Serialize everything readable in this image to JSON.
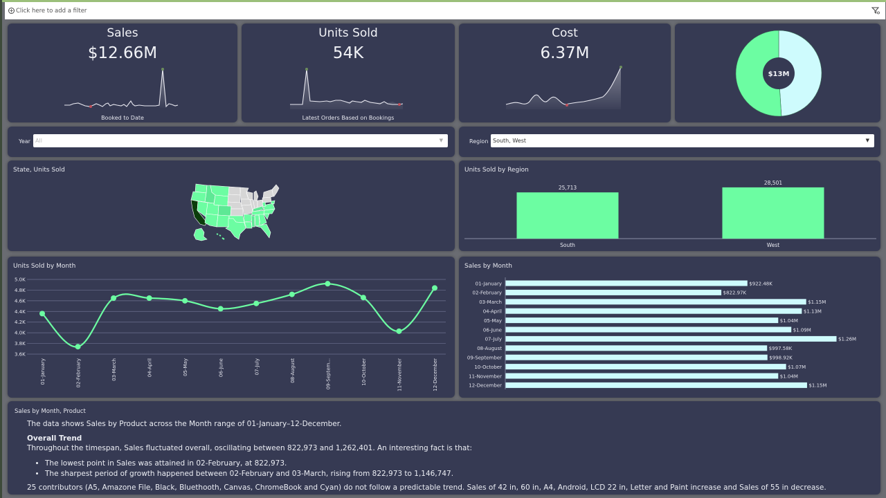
{
  "filter_bar": {
    "placeholder": "Click here to add a filter",
    "add_icon": "plus-circle-icon",
    "funnel_icon": "filter-funnel-icon"
  },
  "kpis": [
    {
      "title": "Sales",
      "value": "$12.66M",
      "subtitle": "Booked to Date"
    },
    {
      "title": "Units Sold",
      "value": "54K",
      "subtitle": "Latest Orders Based on Bookings"
    },
    {
      "title": "Cost",
      "value": "6.37M",
      "subtitle": ""
    }
  ],
  "donut": {
    "center_label": "$13M",
    "slices": [
      {
        "name": "segment-green",
        "share": 0.51,
        "color": "#6cfda2"
      },
      {
        "name": "segment-light",
        "share": 0.49,
        "color": "#cefbfd"
      }
    ]
  },
  "filters": {
    "year": {
      "label": "Year",
      "value": "All"
    },
    "region": {
      "label": "Region",
      "value": "South, West"
    }
  },
  "map": {
    "title": "State, Units Sold",
    "highlight_color": "#0b3d0b",
    "fill_color": "#6cfda2",
    "empty_color": "#d6d6d6"
  },
  "colors": {
    "panel_bg": "#363a53",
    "accent_green": "#6cfda2",
    "accent_light": "#cefbfd",
    "spark_max": "#6e8f5e",
    "spark_min": "#c0505a"
  },
  "chart_data": [
    {
      "type": "bar",
      "title": "Units Sold by Region",
      "categories": [
        "South",
        "West"
      ],
      "values": [
        25713,
        28501
      ],
      "data_labels": [
        "25,713",
        "28,501"
      ],
      "ylim": [
        0,
        30000
      ]
    },
    {
      "type": "line",
      "title": "Units Sold by Month",
      "categories": [
        "01-January",
        "02-February",
        "03-March",
        "04-April",
        "05-May",
        "06-June",
        "07-July",
        "08-August",
        "09-Septem...",
        "10-October",
        "11-November",
        "12-December"
      ],
      "values": [
        4360,
        3740,
        4650,
        4650,
        4600,
        4450,
        4550,
        4720,
        4920,
        4660,
        4030,
        4840
      ],
      "yticks": [
        "3.6K",
        "3.8K",
        "4.0K",
        "4.2K",
        "4.4K",
        "4.6K",
        "4.8K",
        "5.0K"
      ],
      "ylim": [
        3600,
        5000
      ],
      "grid": true
    },
    {
      "type": "bar",
      "orientation": "horizontal",
      "title": "Sales by Month",
      "categories": [
        "01-January",
        "02-February",
        "03-March",
        "04-April",
        "05-May",
        "06-June",
        "07-July",
        "08-August",
        "09-September",
        "10-October",
        "11-November",
        "12-December"
      ],
      "values": [
        922480,
        822973,
        1146747,
        1130000,
        1040000,
        1090000,
        1262401,
        997580,
        998920,
        1070000,
        1040000,
        1150000
      ],
      "data_labels": [
        "$922.48K",
        "$822.97K",
        "$1.15M",
        "$1.13M",
        "$1.04M",
        "$1.09M",
        "$1.26M",
        "$997.58K",
        "$998.92K",
        "$1.07M",
        "$1.04M",
        "$1.15M"
      ],
      "xlim": [
        0,
        1400000
      ]
    }
  ],
  "narrative": {
    "title": "Sales by Month, Product",
    "intro": "The data shows Sales by Product across the Month range of 01-January–12-December.",
    "heading": "Overall Trend",
    "trend": "Throughout the timespan, Sales fluctuated overall, oscillating between 822,973 and 1,262,401. An interesting fact is that:",
    "bullets": [
      "The lowest point in Sales was attained in 02-February, at 822,973.",
      "The sharpest period of growth happened between 02-February and 03-March, rising from 822,973 to 1,146,747."
    ],
    "contributors": "25 contributors (A5, Amazone File, Black, Bluethooth, Canvas, ChromeBook and Cyan) do not follow a predictable trend. Sales of 42 in, 60 in, A4, Android, LCD 22 in, Letter and Paint increase and Sales of 55 in decrease."
  }
}
